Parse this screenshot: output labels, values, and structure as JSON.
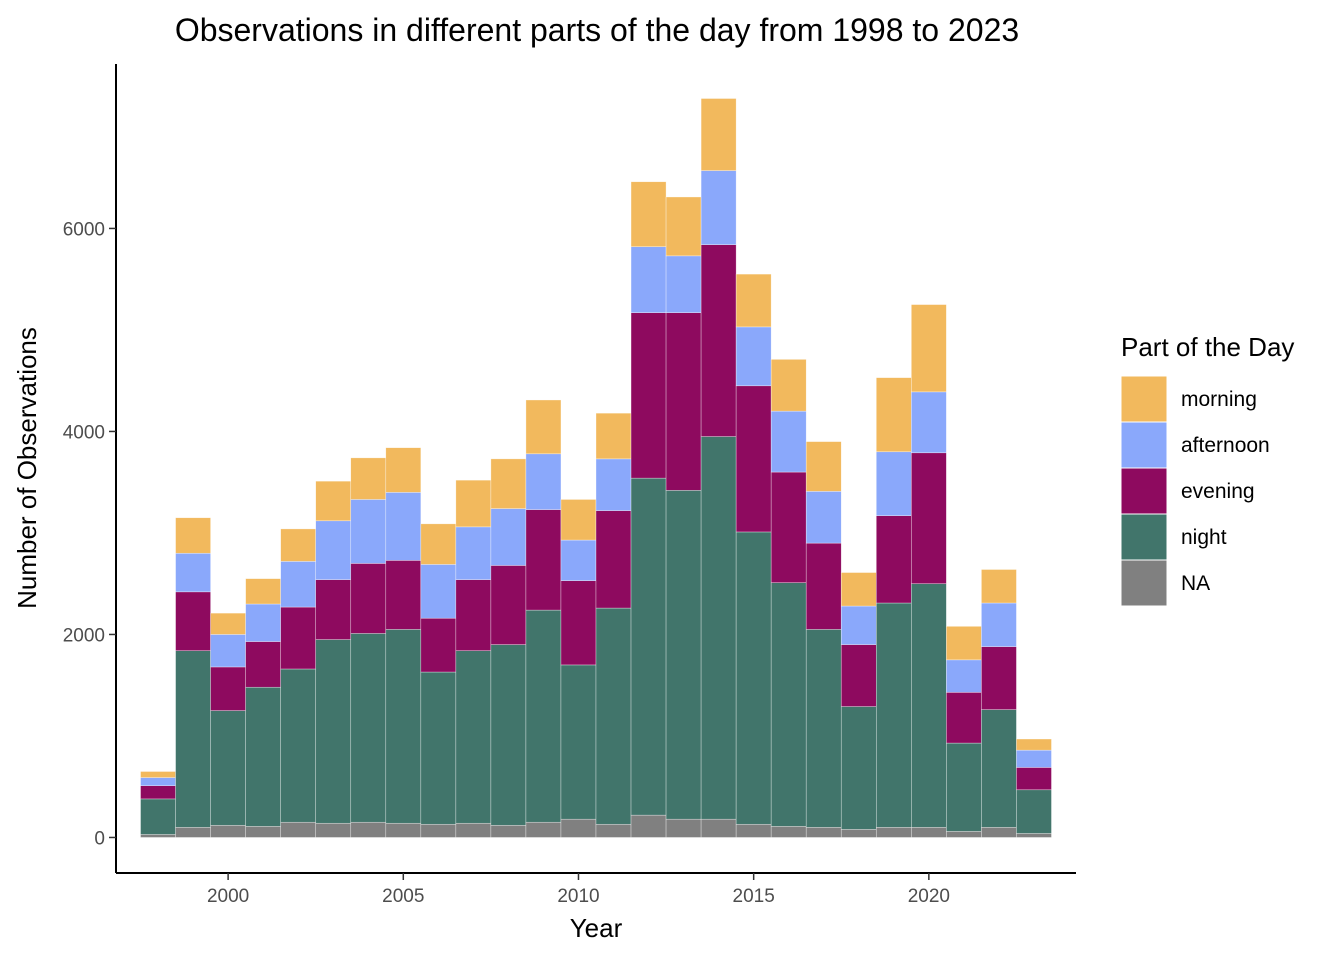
{
  "chart_data": {
    "type": "bar",
    "stacked": true,
    "title": "Observations in different parts of the day from 1998 to 2023",
    "xlabel": "Year",
    "ylabel": "Number of Observations",
    "xlim": [
      1996.8,
      2024.2
    ],
    "ylim": [
      -350,
      7620
    ],
    "x_ticks": [
      2000,
      2005,
      2010,
      2015,
      2020
    ],
    "y_ticks": [
      0,
      2000,
      4000,
      6000
    ],
    "grid": false,
    "legend": {
      "title": "Part of the Day",
      "placement": "right"
    },
    "x": [
      1998,
      1999,
      2000,
      2001,
      2002,
      2003,
      2004,
      2005,
      2006,
      2007,
      2008,
      2009,
      2010,
      2011,
      2012,
      2013,
      2014,
      2015,
      2016,
      2017,
      2018,
      2019,
      2020,
      2021,
      2022,
      2023
    ],
    "series": [
      {
        "name": "NA",
        "color": "#808080",
        "values": [
          30,
          100,
          120,
          110,
          150,
          140,
          150,
          140,
          130,
          140,
          120,
          150,
          180,
          130,
          220,
          180,
          180,
          130,
          110,
          100,
          80,
          100,
          100,
          60,
          100,
          40
        ]
      },
      {
        "name": "night",
        "color": "#41756b",
        "values": [
          350,
          1740,
          1130,
          1370,
          1510,
          1810,
          1860,
          1910,
          1500,
          1700,
          1780,
          2090,
          1520,
          2130,
          3320,
          3240,
          3770,
          2880,
          2400,
          1950,
          1210,
          2210,
          2400,
          870,
          1160,
          430
        ]
      },
      {
        "name": "evening",
        "color": "#8e0a5f",
        "values": [
          130,
          580,
          430,
          450,
          610,
          590,
          690,
          680,
          530,
          700,
          780,
          990,
          830,
          960,
          1630,
          1750,
          1890,
          1440,
          1090,
          850,
          610,
          860,
          1290,
          500,
          620,
          220
        ]
      },
      {
        "name": "afternoon",
        "color": "#8aa8fb",
        "values": [
          80,
          380,
          320,
          370,
          450,
          580,
          630,
          670,
          530,
          520,
          560,
          550,
          400,
          510,
          650,
          560,
          730,
          580,
          600,
          510,
          380,
          630,
          600,
          320,
          430,
          170
        ]
      },
      {
        "name": "morning",
        "color": "#f2b95d",
        "values": [
          60,
          350,
          210,
          250,
          320,
          390,
          410,
          440,
          400,
          460,
          490,
          530,
          400,
          450,
          640,
          580,
          710,
          520,
          510,
          490,
          330,
          730,
          860,
          330,
          330,
          110
        ]
      }
    ]
  }
}
